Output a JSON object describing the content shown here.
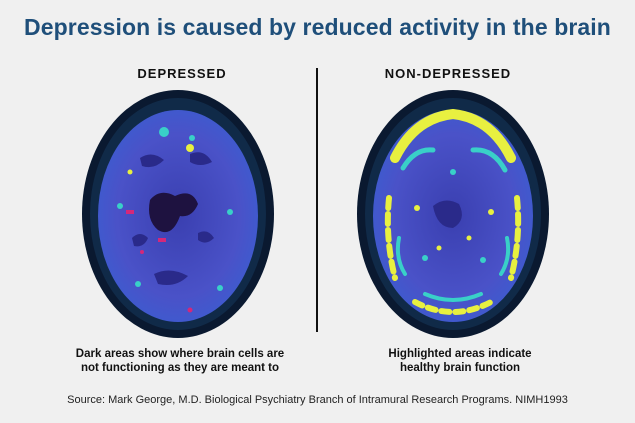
{
  "title": "Depression is caused by reduced activity in the brain",
  "panels": [
    {
      "label": "DEPRESSED",
      "caption_line1": "Dark areas show where brain cells are",
      "caption_line2": "not functioning as they are meant to"
    },
    {
      "label": "NON-DEPRESSED",
      "caption_line1": "Highlighted areas indicate",
      "caption_line2": "healthy brain function"
    }
  ],
  "source": "Source: Mark George, M.D. Biological Psychiatry Branch of Intramural Research Programs. NIMH1993",
  "colors": {
    "title": "#1f4f7a",
    "scan_dark": "#0a1930",
    "scan_base": "#4a52c8",
    "scan_dim": "#2a2a8a",
    "scan_low": "#1e1240",
    "scan_active": "#e8f040",
    "scan_mid": "#39d0c8",
    "scan_spot": "#d4287a"
  }
}
